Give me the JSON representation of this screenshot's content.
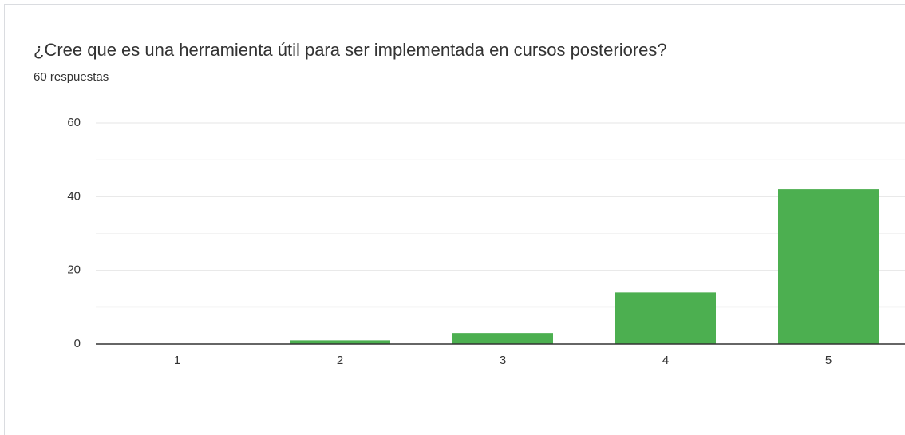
{
  "chart_data": {
    "type": "bar",
    "title": "¿Cree que es una herramienta útil para ser implementada en cursos posteriores?",
    "subtitle": "60 respuestas",
    "categories": [
      "1",
      "2",
      "3",
      "4",
      "5"
    ],
    "values": [
      0,
      1,
      3,
      14,
      42
    ],
    "color": "#4caf50",
    "ylim": [
      0,
      60
    ],
    "yticks": [
      0,
      20,
      40,
      60
    ],
    "minor_yticks": [
      10,
      30,
      50
    ],
    "grid": true
  }
}
